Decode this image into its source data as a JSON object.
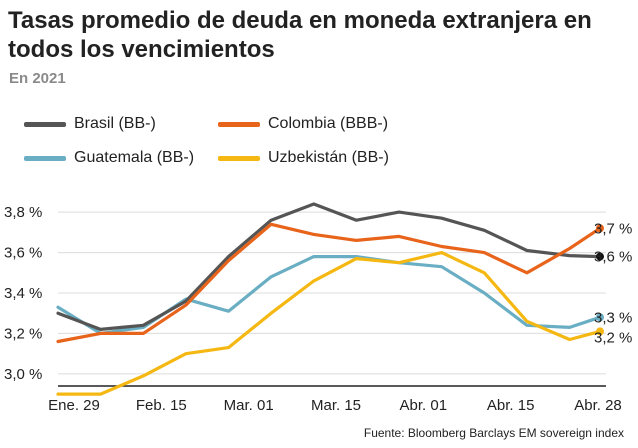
{
  "header": {
    "title": "Tasas promedio de deuda en moneda extranjera en todos los vencimientos",
    "subtitle": "En 2021"
  },
  "source": "Fuente: Bloomberg Barclays EM sovereign index",
  "chart_data": {
    "type": "line",
    "title": "Tasas promedio de deuda en moneda extranjera en todos los vencimientos",
    "subtitle": "En 2021",
    "xlabel": "",
    "ylabel": "",
    "x_tick_labels": [
      "Ene. 29",
      "Feb. 15",
      "Mar. 01",
      "Mar. 15",
      "Abr. 01",
      "Abr. 15",
      "Abr. 28"
    ],
    "y_ticks": [
      3.0,
      3.2,
      3.4,
      3.6,
      3.8
    ],
    "y_tick_labels": [
      "3,0 %",
      "3,2 %",
      "3,4 %",
      "3,6 %",
      "3,8 %"
    ],
    "ylim": [
      2.94,
      3.86
    ],
    "grid": true,
    "legend_position": "top",
    "x_dates": [
      "2021-01-29",
      "2021-02-05",
      "2021-02-12",
      "2021-02-19",
      "2021-02-26",
      "2021-03-05",
      "2021-03-12",
      "2021-03-19",
      "2021-03-26",
      "2021-04-02",
      "2021-04-09",
      "2021-04-16",
      "2021-04-23",
      "2021-04-28"
    ],
    "series": [
      {
        "name": "Brasil (BB-)",
        "color": "#555555",
        "values": [
          3.3,
          3.22,
          3.24,
          3.36,
          3.58,
          3.76,
          3.84,
          3.76,
          3.8,
          3.77,
          3.71,
          3.61,
          3.585,
          3.58
        ],
        "end_label": "3,6 %"
      },
      {
        "name": "Colombia (BBB-)",
        "color": "#e8641b",
        "values": [
          3.16,
          3.2,
          3.2,
          3.34,
          3.56,
          3.74,
          3.69,
          3.66,
          3.68,
          3.63,
          3.6,
          3.5,
          3.62,
          3.72
        ],
        "end_label": "3,7 %"
      },
      {
        "name": "Guatemala (BB-)",
        "color": "#6aaec3",
        "values": [
          3.33,
          3.2,
          3.23,
          3.37,
          3.31,
          3.48,
          3.58,
          3.58,
          3.55,
          3.53,
          3.4,
          3.24,
          3.23,
          3.28
        ],
        "end_label": "3,3 %"
      },
      {
        "name": "Uzbekistán (BB-)",
        "color": "#f5b812",
        "values": [
          2.9,
          2.9,
          2.99,
          3.1,
          3.13,
          3.3,
          3.46,
          3.57,
          3.55,
          3.6,
          3.5,
          3.26,
          3.17,
          3.21
        ],
        "end_label": "3,2 %"
      }
    ]
  }
}
